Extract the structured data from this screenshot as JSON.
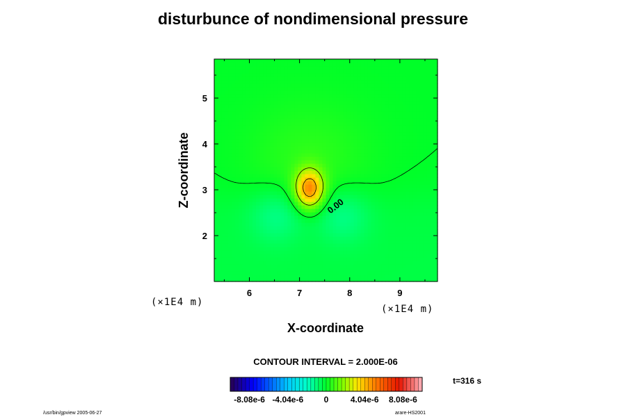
{
  "chart_data": {
    "type": "heatmap",
    "title": "disturbunce of nondimensional pressure",
    "xlabel": "X-coordinate",
    "ylabel": "Z-coordinate",
    "x_unit_left": "(×1E4 m)",
    "x_unit_right": "(×1E4 m)",
    "xlim": [
      5.3,
      9.75
    ],
    "ylim": [
      1.0,
      5.85
    ],
    "x_ticks": [
      6,
      7,
      8,
      9
    ],
    "y_ticks": [
      2,
      3,
      4,
      5
    ],
    "field": {
      "description_units": "nondimensional pressure disturbance",
      "max_center": [
        7.2,
        3.02
      ],
      "max_value": 4.8e-06,
      "min_lobes": [
        {
          "x": 6.55,
          "z": 2.45,
          "value": -1e-06
        },
        {
          "x": 7.85,
          "z": 2.45,
          "value": -1e-06
        }
      ]
    },
    "contour_interval_text": "CONTOUR INTERVAL = 2.000E-06",
    "contour_label": "0.00",
    "colorbar": {
      "min": -1.01e-05,
      "max": 1.01e-05,
      "tick_values": [
        -8.08e-06,
        -4.04e-06,
        0,
        4.04e-06,
        8.08e-06
      ],
      "tick_labels": [
        "-8.08e-6",
        "-4.04e-6",
        "0",
        "4.04e-6",
        "8.08e-6"
      ],
      "n_levels": 50
    },
    "time_label": "t=316 s"
  },
  "footer": {
    "left": "/usr/bin/gpview 2005-06-27",
    "right": "arare-HS2001"
  },
  "colors": {
    "background": "#ffffff",
    "contour_line": "#000000"
  }
}
